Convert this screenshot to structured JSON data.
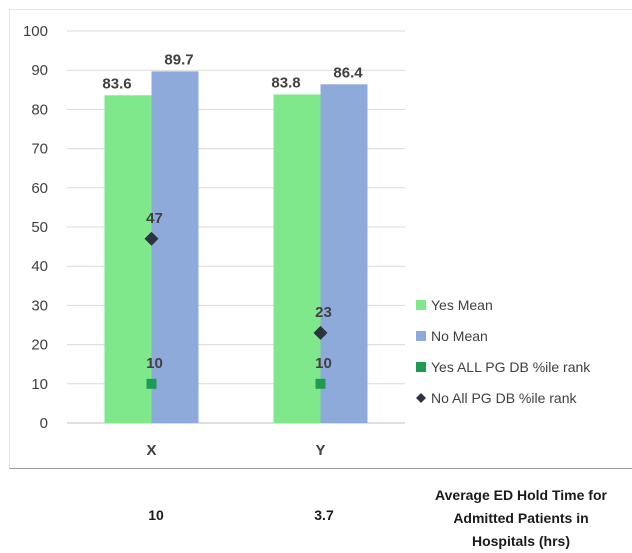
{
  "chart_data": {
    "type": "bar",
    "categories": [
      "X",
      "Y"
    ],
    "ylim": [
      0,
      100
    ],
    "yticks": [
      0,
      10,
      20,
      30,
      40,
      50,
      60,
      70,
      80,
      90,
      100
    ],
    "grid": true,
    "legend_position": "right",
    "series": [
      {
        "name": "Yes Mean",
        "kind": "bar",
        "color": "#7ee88a",
        "values": [
          83.6,
          83.8
        ],
        "labels": [
          "83.6",
          "83.8"
        ]
      },
      {
        "name": "No Mean",
        "kind": "bar",
        "color": "#8eaadb",
        "values": [
          89.7,
          86.4
        ],
        "labels": [
          "89.7",
          "86.4"
        ]
      },
      {
        "name": "Yes ALL PG DB %ile rank",
        "kind": "marker-square",
        "color": "#1e9a52",
        "values": [
          10,
          10
        ],
        "labels": [
          "10",
          "10"
        ]
      },
      {
        "name": "No All PG DB %ile rank",
        "kind": "marker-diamond",
        "color": "#2c3440",
        "values": [
          47,
          23
        ],
        "labels": [
          "47",
          "23"
        ]
      }
    ]
  },
  "table": {
    "values": [
      "10",
      "3.7"
    ],
    "metric_label_lines": [
      "Average ED Hold Time for",
      "Admitted Patients in",
      "Hospitals (hrs)"
    ]
  }
}
